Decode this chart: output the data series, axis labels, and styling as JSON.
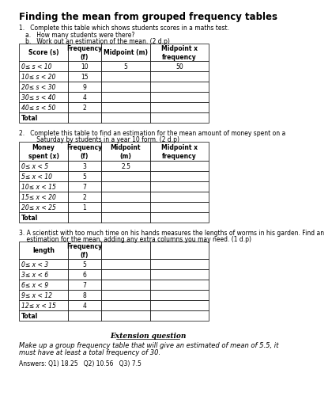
{
  "title": "Finding the mean from grouped frequency tables",
  "q1_intro": "1.   Complete this table which shows students scores in a maths test.",
  "q1a": "a.   How many students were there?",
  "q1b": "b.   Work out an estimation of the mean. (2 d.p)",
  "table1_headers": [
    "Score (s)",
    "Frequency\n(f)",
    "Midpoint (m)",
    "Midpoint x\nfrequency"
  ],
  "table1_rows": [
    [
      "0≤ s < 10",
      "10",
      "5",
      "50"
    ],
    [
      "10≤ s < 20",
      "15",
      "",
      ""
    ],
    [
      "20≤ s < 30",
      "9",
      "",
      ""
    ],
    [
      "30≤ s < 40",
      "4",
      "",
      ""
    ],
    [
      "40≤ s < 50",
      "2",
      "",
      ""
    ],
    [
      "Total",
      "",
      "",
      ""
    ]
  ],
  "q2_intro_1": "2.   Complete this table to find an estimation for the mean amount of money spent on a",
  "q2_intro_2": "      Saturday by students in a year 10 form. (2 d.p)",
  "table2_headers": [
    "Money\nspent (x)",
    "Frequency\n(f)",
    "Midpoint\n(m)",
    "Midpoint x\nfrequency"
  ],
  "table2_rows": [
    [
      "0≤ x < 5",
      "3",
      "2.5",
      ""
    ],
    [
      "5≤ x < 10",
      "5",
      "",
      ""
    ],
    [
      "10≤ x < 15",
      "7",
      "",
      ""
    ],
    [
      "15≤ x < 20",
      "2",
      "",
      ""
    ],
    [
      "20≤ x < 25",
      "1",
      "",
      ""
    ],
    [
      "Total",
      "",
      "",
      ""
    ]
  ],
  "q3_intro_1": "3. A scientist with too much time on his hands measures the lengths of worms in his garden. Find an",
  "q3_intro_2": "    estimation for the mean, adding any extra columns you may need. (1 d.p)",
  "table3_headers": [
    "length",
    "Frequency\n(f)",
    "",
    ""
  ],
  "table3_rows": [
    [
      "0≤ x < 3",
      "5",
      "",
      ""
    ],
    [
      "3≤ x < 6",
      "6",
      "",
      ""
    ],
    [
      "6≤ x < 9",
      "7",
      "",
      ""
    ],
    [
      "9≤ x < 12",
      "8",
      "",
      ""
    ],
    [
      "12≤ x < 15",
      "4",
      "",
      ""
    ],
    [
      "Total",
      "",
      "",
      ""
    ]
  ],
  "extension_title": "Extension question",
  "extension_text_1": "Make up a group frequency table that will give an estimated of mean of 5.5, it",
  "extension_text_2": "must have at least a total frequency of 30.",
  "answers": "Answers: Q1) 18.25   Q2) 10.56   Q3) 7.5",
  "bg_color": "#ffffff",
  "text_color": "#000000"
}
